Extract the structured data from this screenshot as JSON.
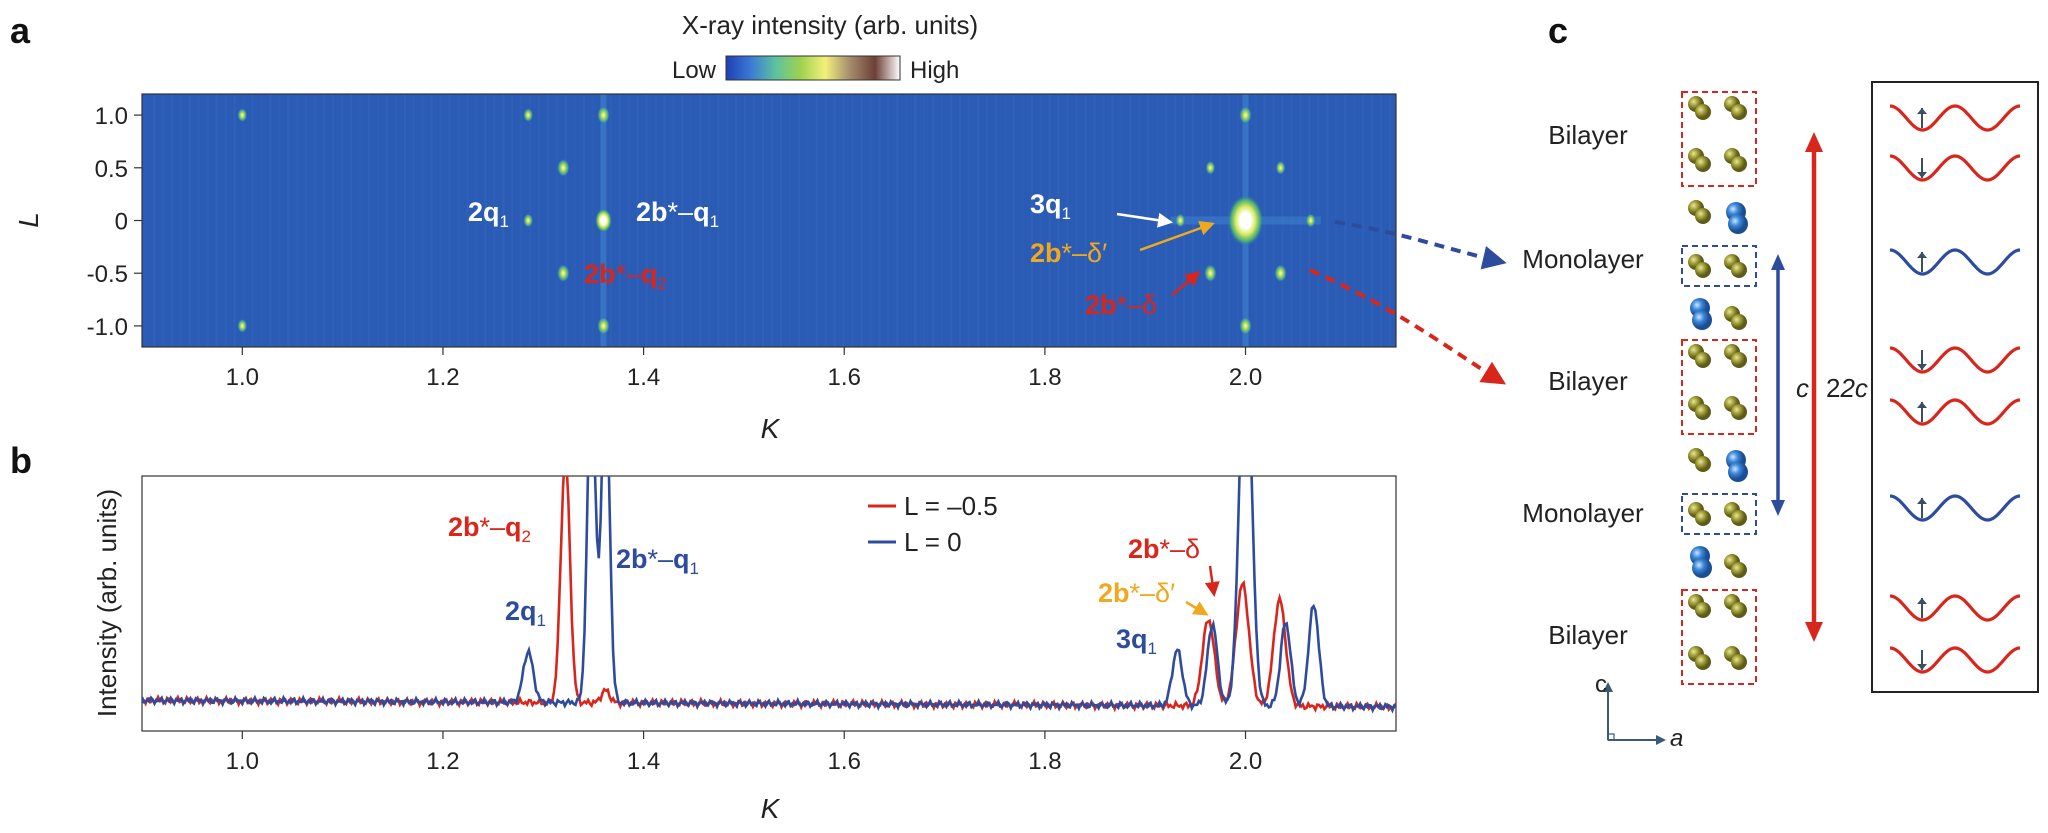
{
  "panels": {
    "a": "a",
    "b": "b",
    "c": "c"
  },
  "colorbar": {
    "title": "X-ray intensity (arb. units)",
    "low": "Low",
    "high": "High",
    "stops": [
      "#1f3fb4",
      "#3a7bd5",
      "#5ec2a0",
      "#9ed24e",
      "#f2f07a",
      "#a48b6d",
      "#6e3f36",
      "#ffffff"
    ]
  },
  "colors": {
    "map_bg": "#2a5cb5",
    "red": "#d9261c",
    "blue": "#2e4c9e",
    "orange": "#f0a81e",
    "white": "#ffffff",
    "olive": "#9a9a2e",
    "ion_blue": "#3b86d6"
  },
  "chart_data": [
    {
      "type": "heatmap",
      "panel": "a",
      "xlabel": "K",
      "ylabel": "L",
      "xlim": [
        0.9,
        2.15
      ],
      "ylim": [
        -1.2,
        1.2
      ],
      "xticks": [
        "1.0",
        "1.2",
        "1.4",
        "1.6",
        "1.8",
        "2.0"
      ],
      "xtick_values": [
        1.0,
        1.2,
        1.4,
        1.6,
        1.8,
        2.0
      ],
      "yticks": [
        "1.0",
        "0.5",
        "0",
        "-0.5",
        "-1.0"
      ],
      "ytick_values": [
        1.0,
        0.5,
        0,
        -0.5,
        -1.0
      ],
      "peaks": [
        {
          "k": 1.0,
          "l": 1.0,
          "w": 1
        },
        {
          "k": 1.0,
          "l": -1.0,
          "w": 1
        },
        {
          "k": 1.285,
          "l": 0.0,
          "w": 1
        },
        {
          "k": 1.285,
          "l": 1.0,
          "w": 1
        },
        {
          "k": 1.32,
          "l": 0.5,
          "w": 2
        },
        {
          "k": 1.32,
          "l": -0.5,
          "w": 2
        },
        {
          "k": 1.36,
          "l": 1.0,
          "w": 2
        },
        {
          "k": 1.36,
          "l": 0.0,
          "w": 3
        },
        {
          "k": 1.36,
          "l": -1.0,
          "w": 2
        },
        {
          "k": 1.935,
          "l": 0.0,
          "w": 1
        },
        {
          "k": 1.965,
          "l": 0.5,
          "w": 1
        },
        {
          "k": 1.965,
          "l": -0.5,
          "w": 2
        },
        {
          "k": 2.0,
          "l": 1.0,
          "w": 2
        },
        {
          "k": 2.0,
          "l": 0.0,
          "w": 4
        },
        {
          "k": 2.0,
          "l": -1.0,
          "w": 2
        },
        {
          "k": 2.035,
          "l": 0.5,
          "w": 1
        },
        {
          "k": 2.035,
          "l": -0.5,
          "w": 2
        },
        {
          "k": 2.065,
          "l": 0.0,
          "w": 1
        }
      ],
      "annotations": [
        {
          "text": "2q1",
          "color": "white"
        },
        {
          "text": "2b*–q1",
          "color": "white"
        },
        {
          "text": "2b*–q2",
          "color": "red"
        },
        {
          "text": "3q1",
          "color": "white"
        },
        {
          "text": "2b*–δ′",
          "color": "orange"
        },
        {
          "text": "2b*–δ",
          "color": "red"
        }
      ]
    },
    {
      "type": "line",
      "panel": "b",
      "xlabel": "K",
      "ylabel": "Intensity (arb. units)",
      "xlim": [
        0.9,
        2.15
      ],
      "ylim": [
        0,
        1
      ],
      "xticks": [
        "1.0",
        "1.2",
        "1.4",
        "1.6",
        "1.8",
        "2.0"
      ],
      "xtick_values": [
        1.0,
        1.2,
        1.4,
        1.6,
        1.8,
        2.0
      ],
      "baseline": 0.12,
      "series": [
        {
          "name": "L = –0.5",
          "color": "#d9261c",
          "peaks": [
            {
              "k": 1.322,
              "h": 0.97,
              "s": 0.0045
            },
            {
              "k": 1.362,
              "h": 0.05,
              "s": 0.004
            },
            {
              "k": 1.963,
              "h": 0.34,
              "s": 0.006
            },
            {
              "k": 1.997,
              "h": 0.48,
              "s": 0.0065
            },
            {
              "k": 2.034,
              "h": 0.42,
              "s": 0.006
            }
          ]
        },
        {
          "name": "L = 0",
          "color": "#2e4c9e",
          "peaks": [
            {
              "k": 1.285,
              "h": 0.2,
              "s": 0.005
            },
            {
              "k": 1.348,
              "h": 1.3,
              "s": 0.004
            },
            {
              "k": 1.362,
              "h": 1.3,
              "s": 0.004
            },
            {
              "k": 1.932,
              "h": 0.22,
              "s": 0.005
            },
            {
              "k": 1.967,
              "h": 0.32,
              "s": 0.005
            },
            {
              "k": 2.0,
              "h": 1.5,
              "s": 0.006
            },
            {
              "k": 2.04,
              "h": 0.33,
              "s": 0.005
            },
            {
              "k": 2.068,
              "h": 0.4,
              "s": 0.005
            }
          ]
        }
      ],
      "legend": {
        "placement": "top-center",
        "entries": [
          "L = –0.5",
          "L = 0"
        ]
      },
      "annotations": [
        {
          "text": "2b*–q2",
          "color": "red"
        },
        {
          "text": "2b*–q1",
          "color": "blue"
        },
        {
          "text": "2q1",
          "color": "blue"
        },
        {
          "text": "2b*–δ",
          "color": "red"
        },
        {
          "text": "2b*–δ′",
          "color": "orange"
        },
        {
          "text": "3q1",
          "color": "blue"
        }
      ]
    }
  ],
  "structure": {
    "layers": [
      "Bilayer",
      "Monolayer",
      "Bilayer",
      "Monolayer",
      "Bilayer"
    ],
    "c_label": "c",
    "two_c_label": "2c",
    "axis_c": "c",
    "axis_a": "a"
  }
}
